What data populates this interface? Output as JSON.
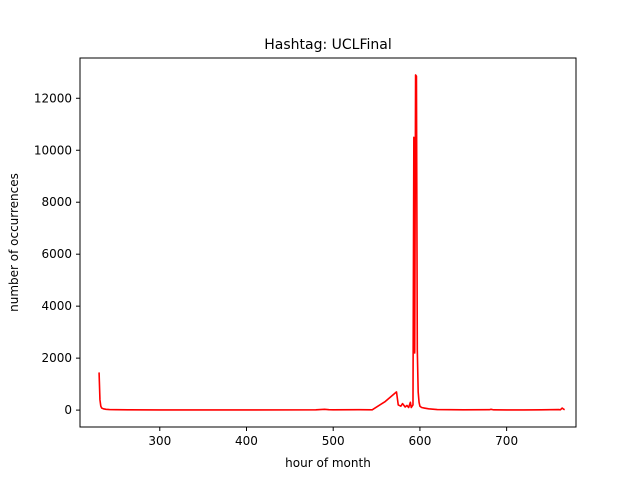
{
  "chart_data": {
    "type": "line",
    "title": "Hashtag: UCLFinal",
    "xlabel": "hour of month",
    "ylabel": "number of occurrences",
    "xlim": [
      208,
      780
    ],
    "ylim": [
      -650,
      13550
    ],
    "xticks": [
      300,
      400,
      500,
      600,
      700
    ],
    "yticks": [
      0,
      2000,
      4000,
      6000,
      8000,
      10000,
      12000
    ],
    "grid": false,
    "series": [
      {
        "color": "#ff0000",
        "x": [
          230,
          231,
          232,
          233,
          235,
          238,
          242,
          250,
          265,
          300,
          400,
          480,
          490,
          495,
          500,
          530,
          545,
          560,
          573,
          575,
          578,
          580,
          583,
          585,
          587,
          589,
          590,
          591,
          592,
          593,
          594,
          595,
          596,
          597,
          598,
          599,
          600,
          602,
          605,
          610,
          620,
          650,
          680,
          682,
          685,
          700,
          720,
          740,
          760,
          762,
          764,
          766,
          767
        ],
        "y": [
          1450,
          400,
          150,
          80,
          50,
          30,
          20,
          15,
          10,
          5,
          5,
          10,
          30,
          15,
          10,
          15,
          10,
          330,
          700,
          200,
          150,
          250,
          120,
          180,
          100,
          300,
          100,
          150,
          200,
          10500,
          2200,
          12900,
          12850,
          2300,
          700,
          300,
          150,
          100,
          80,
          50,
          20,
          10,
          15,
          30,
          10,
          5,
          5,
          10,
          20,
          10,
          80,
          30,
          20
        ]
      }
    ]
  }
}
